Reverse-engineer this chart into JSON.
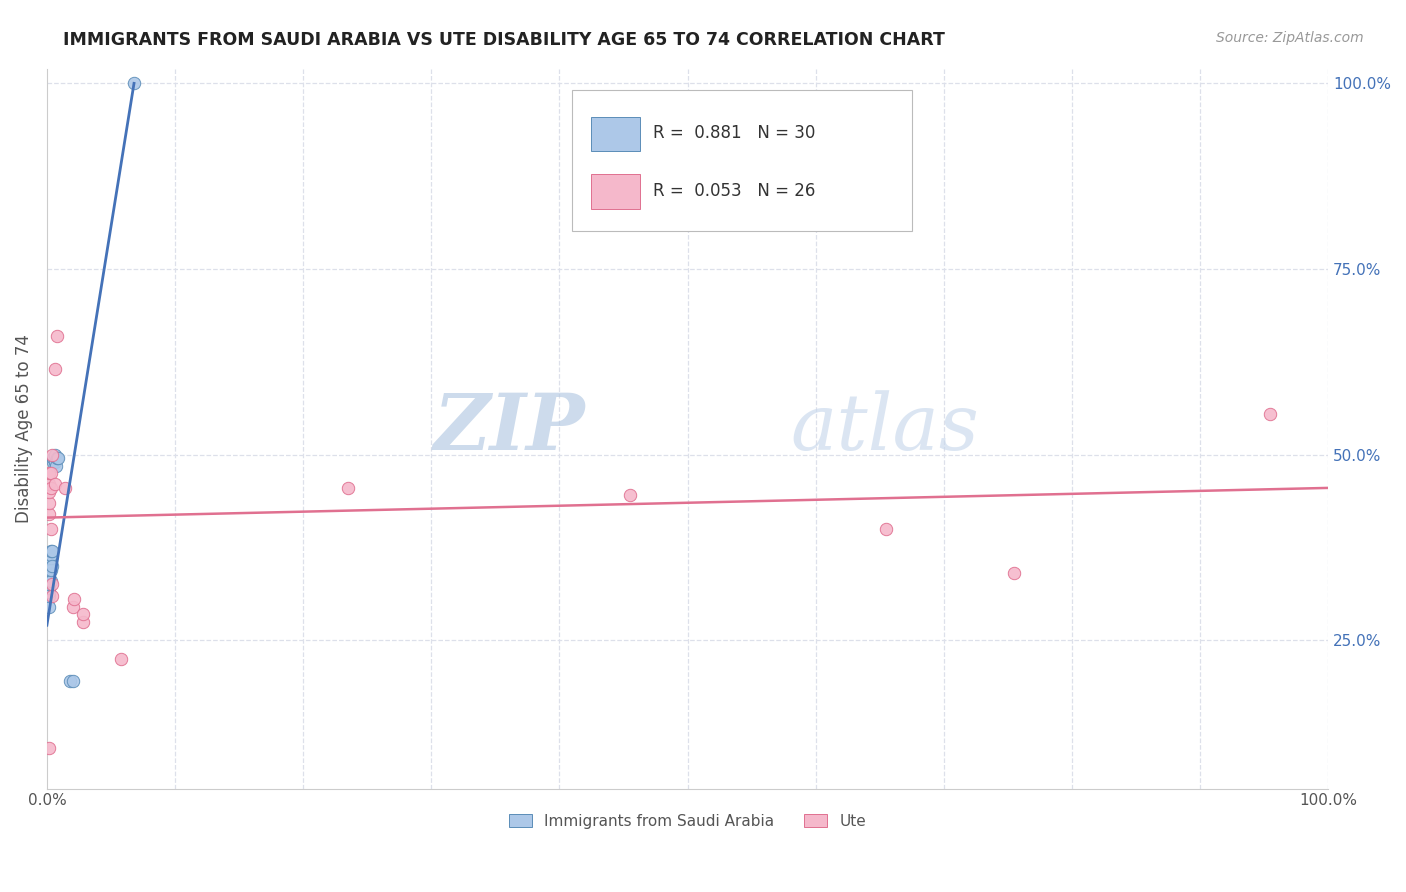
{
  "title": "IMMIGRANTS FROM SAUDI ARABIA VS UTE DISABILITY AGE 65 TO 74 CORRELATION CHART",
  "source": "Source: ZipAtlas.com",
  "ylabel": "Disability Age 65 to 74",
  "legend_blue_label": "Immigrants from Saudi Arabia",
  "legend_pink_label": "Ute",
  "legend_blue_R": "R =  0.881",
  "legend_blue_N": "N = 30",
  "legend_pink_R": "R =  0.053",
  "legend_pink_N": "N = 26",
  "right_yticks": [
    "100.0%",
    "75.0%",
    "50.0%",
    "25.0%"
  ],
  "right_ytick_vals": [
    1.0,
    0.75,
    0.5,
    0.25
  ],
  "blue_points": [
    [
      0.002,
      0.295
    ],
    [
      0.002,
      0.31
    ],
    [
      0.002,
      0.315
    ],
    [
      0.002,
      0.32
    ],
    [
      0.002,
      0.325
    ],
    [
      0.002,
      0.33
    ],
    [
      0.002,
      0.335
    ],
    [
      0.002,
      0.34
    ],
    [
      0.002,
      0.345
    ],
    [
      0.002,
      0.35
    ],
    [
      0.002,
      0.355
    ],
    [
      0.002,
      0.36
    ],
    [
      0.002,
      0.365
    ],
    [
      0.003,
      0.33
    ],
    [
      0.003,
      0.345
    ],
    [
      0.003,
      0.36
    ],
    [
      0.003,
      0.365
    ],
    [
      0.003,
      0.37
    ],
    [
      0.004,
      0.35
    ],
    [
      0.004,
      0.37
    ],
    [
      0.005,
      0.49
    ],
    [
      0.005,
      0.495
    ],
    [
      0.006,
      0.49
    ],
    [
      0.006,
      0.5
    ],
    [
      0.007,
      0.485
    ],
    [
      0.008,
      0.495
    ],
    [
      0.009,
      0.495
    ],
    [
      0.018,
      0.195
    ],
    [
      0.02,
      0.195
    ],
    [
      0.068,
      1.0
    ]
  ],
  "pink_points": [
    [
      0.002,
      0.105
    ],
    [
      0.002,
      0.42
    ],
    [
      0.002,
      0.435
    ],
    [
      0.002,
      0.45
    ],
    [
      0.002,
      0.46
    ],
    [
      0.002,
      0.475
    ],
    [
      0.003,
      0.4
    ],
    [
      0.003,
      0.455
    ],
    [
      0.003,
      0.475
    ],
    [
      0.004,
      0.31
    ],
    [
      0.004,
      0.325
    ],
    [
      0.004,
      0.5
    ],
    [
      0.006,
      0.46
    ],
    [
      0.006,
      0.615
    ],
    [
      0.008,
      0.66
    ],
    [
      0.014,
      0.455
    ],
    [
      0.02,
      0.295
    ],
    [
      0.021,
      0.305
    ],
    [
      0.028,
      0.275
    ],
    [
      0.028,
      0.285
    ],
    [
      0.058,
      0.225
    ],
    [
      0.235,
      0.455
    ],
    [
      0.455,
      0.445
    ],
    [
      0.655,
      0.4
    ],
    [
      0.755,
      0.34
    ],
    [
      0.955,
      0.555
    ]
  ],
  "blue_line_x": [
    0.0,
    0.068
  ],
  "blue_line_y": [
    0.27,
    1.0
  ],
  "pink_line_x": [
    0.0,
    1.0
  ],
  "pink_line_y": [
    0.415,
    0.455
  ],
  "xlim": [
    0,
    1.0
  ],
  "ylim": [
    0.05,
    1.02
  ],
  "bg_color": "#ffffff",
  "blue_color": "#adc8e8",
  "blue_edge_color": "#5b8db8",
  "pink_color": "#f5b8cb",
  "pink_edge_color": "#e07090",
  "blue_line_color": "#4472b8",
  "pink_line_color": "#e07090",
  "grid_color": "#dde0ea",
  "watermark_color": "#ccd8e8"
}
